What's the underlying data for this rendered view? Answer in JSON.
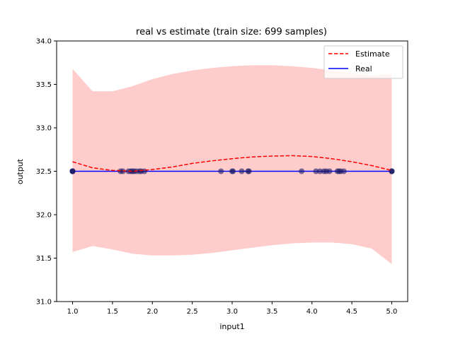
{
  "chart_data": {
    "type": "line",
    "title": "real vs estimate (train size: 699 samples)",
    "xlabel": "input1",
    "ylabel": "output",
    "xlim": [
      0.8,
      5.2
    ],
    "ylim": [
      31.0,
      34.0
    ],
    "xticks": [
      1.0,
      1.5,
      2.0,
      2.5,
      3.0,
      3.5,
      4.0,
      4.5,
      5.0
    ],
    "xtick_labels": [
      "1.0",
      "1.5",
      "2.0",
      "2.5",
      "3.0",
      "3.5",
      "4.0",
      "4.5",
      "5.0"
    ],
    "yticks": [
      31.0,
      31.5,
      32.0,
      32.5,
      33.0,
      33.5,
      34.0
    ],
    "ytick_labels": [
      "31.0",
      "31.5",
      "32.0",
      "32.5",
      "33.0",
      "33.5",
      "34.0"
    ],
    "legend_position": "top-right",
    "series": [
      {
        "name": "Estimate",
        "style": "dashed",
        "color": "#ff0000",
        "x": [
          1.0,
          1.25,
          1.5,
          1.75,
          2.0,
          2.25,
          2.5,
          2.75,
          3.0,
          3.25,
          3.5,
          3.75,
          4.0,
          4.25,
          4.5,
          4.75,
          5.0
        ],
        "y": [
          32.61,
          32.54,
          32.51,
          32.5,
          32.52,
          32.55,
          32.59,
          32.62,
          32.645,
          32.665,
          32.675,
          32.68,
          32.67,
          32.645,
          32.61,
          32.565,
          32.51
        ]
      },
      {
        "name": "Real",
        "style": "solid",
        "color": "#0000ff",
        "x": [
          1.0,
          5.0
        ],
        "y": [
          32.5,
          32.5
        ]
      }
    ],
    "confidence_band": {
      "color": "#ffcccc",
      "x": [
        1.0,
        1.25,
        1.5,
        1.75,
        2.0,
        2.25,
        2.5,
        2.75,
        3.0,
        3.25,
        3.5,
        3.75,
        4.0,
        4.25,
        4.5,
        4.75,
        5.0
      ],
      "upper": [
        33.68,
        33.42,
        33.42,
        33.48,
        33.56,
        33.62,
        33.66,
        33.69,
        33.71,
        33.72,
        33.72,
        33.71,
        33.69,
        33.66,
        33.63,
        33.6,
        33.62
      ],
      "lower": [
        31.57,
        31.64,
        31.6,
        31.55,
        31.53,
        31.53,
        31.54,
        31.56,
        31.59,
        31.62,
        31.65,
        31.67,
        31.68,
        31.68,
        31.66,
        31.61,
        31.43
      ]
    },
    "samples": {
      "color": "#1a1a66",
      "y": 32.5,
      "x": [
        1.0,
        1.0,
        1.0,
        1.0,
        1.6,
        1.63,
        1.7,
        1.73,
        1.75,
        1.77,
        1.8,
        1.84,
        1.86,
        1.9,
        2.86,
        3.0,
        3.01,
        3.12,
        3.2,
        3.21,
        3.87,
        4.05,
        4.1,
        4.15,
        4.18,
        4.22,
        4.32,
        4.34,
        4.36,
        4.4,
        5.0,
        5.0,
        5.0
      ]
    }
  }
}
